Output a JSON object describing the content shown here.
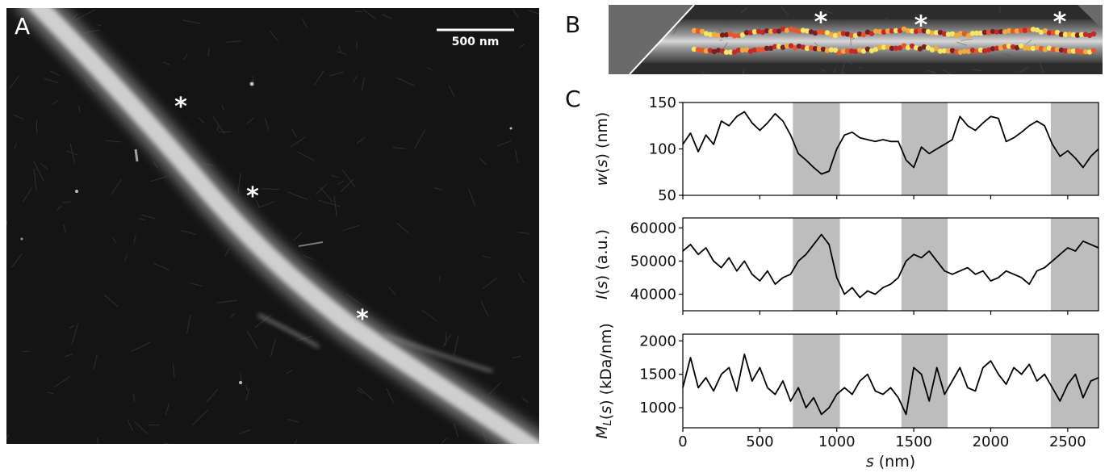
{
  "panels": {
    "a": {
      "letter": "A",
      "scalebar_label": "500 nm",
      "markers": [
        "*",
        "*",
        "*"
      ]
    },
    "b": {
      "letter": "B",
      "markers": [
        "*",
        "*",
        "*"
      ]
    },
    "c": {
      "letter": "C"
    }
  },
  "colors": {
    "shading": "#bdbdbd",
    "line": "#000000",
    "overlay_palette": [
      "#f5e663",
      "#f2a93b",
      "#e8552a",
      "#c62828",
      "#7a1f1f"
    ]
  },
  "chart_data": [
    {
      "type": "line",
      "ylabel": "w(s) (nm)",
      "xlabel": "",
      "xlim": [
        0,
        2700
      ],
      "ylim": [
        50,
        150
      ],
      "xticks": [
        0,
        500,
        1000,
        1500,
        2000,
        2500
      ],
      "yticks": [
        50,
        100,
        150
      ],
      "shaded_regions": [
        [
          715,
          1020
        ],
        [
          1420,
          1720
        ],
        [
          2390,
          2700
        ]
      ],
      "series": [
        {
          "x": [
            0,
            50,
            100,
            150,
            200,
            250,
            300,
            350,
            400,
            450,
            500,
            550,
            600,
            650,
            700,
            750,
            800,
            850,
            900,
            950,
            1000,
            1050,
            1100,
            1150,
            1200,
            1250,
            1300,
            1350,
            1400,
            1450,
            1500,
            1550,
            1600,
            1650,
            1700,
            1750,
            1800,
            1850,
            1900,
            1950,
            2000,
            2050,
            2100,
            2150,
            2200,
            2250,
            2300,
            2350,
            2400,
            2450,
            2500,
            2550,
            2600,
            2650,
            2700
          ],
          "values": [
            105,
            117,
            97,
            115,
            105,
            130,
            125,
            135,
            140,
            128,
            120,
            128,
            138,
            130,
            115,
            95,
            88,
            80,
            73,
            76,
            100,
            115,
            118,
            112,
            110,
            108,
            110,
            108,
            108,
            88,
            80,
            102,
            95,
            100,
            105,
            110,
            135,
            125,
            120,
            128,
            135,
            133,
            108,
            112,
            118,
            125,
            130,
            125,
            105,
            92,
            98,
            90,
            80,
            92,
            100
          ]
        }
      ]
    },
    {
      "type": "line",
      "ylabel": "I(s) (a.u.)",
      "xlabel": "",
      "xlim": [
        0,
        2700
      ],
      "ylim": [
        35000,
        63000
      ],
      "xticks": [
        0,
        500,
        1000,
        1500,
        2000,
        2500
      ],
      "yticks": [
        40000,
        50000,
        60000
      ],
      "shaded_regions": [
        [
          715,
          1020
        ],
        [
          1420,
          1720
        ],
        [
          2390,
          2700
        ]
      ],
      "series": [
        {
          "x": [
            0,
            50,
            100,
            150,
            200,
            250,
            300,
            350,
            400,
            450,
            500,
            550,
            600,
            650,
            700,
            750,
            800,
            850,
            900,
            950,
            1000,
            1050,
            1100,
            1150,
            1200,
            1250,
            1300,
            1350,
            1400,
            1450,
            1500,
            1550,
            1600,
            1650,
            1700,
            1750,
            1800,
            1850,
            1900,
            1950,
            2000,
            2050,
            2100,
            2150,
            2200,
            2250,
            2300,
            2350,
            2400,
            2450,
            2500,
            2550,
            2600,
            2650,
            2700
          ],
          "values": [
            53000,
            55000,
            52000,
            54000,
            50000,
            48000,
            51000,
            47000,
            50000,
            46000,
            44000,
            47000,
            43000,
            45000,
            46000,
            50000,
            52000,
            55000,
            58000,
            55000,
            45000,
            40000,
            42000,
            39000,
            41000,
            40000,
            42000,
            43000,
            45000,
            50000,
            52000,
            51000,
            53000,
            50000,
            47000,
            46000,
            47000,
            48000,
            46000,
            47000,
            44000,
            45000,
            47000,
            46000,
            45000,
            43000,
            47000,
            48000,
            50000,
            52000,
            54000,
            53000,
            56000,
            55000,
            54000
          ]
        }
      ]
    },
    {
      "type": "line",
      "ylabel": "M_L(s) (kDa/nm)",
      "xlabel": "s (nm)",
      "xlim": [
        0,
        2700
      ],
      "ylim": [
        700,
        2100
      ],
      "xticks": [
        0,
        500,
        1000,
        1500,
        2000,
        2500
      ],
      "yticks": [
        1000,
        1500,
        2000
      ],
      "shaded_regions": [
        [
          715,
          1020
        ],
        [
          1420,
          1720
        ],
        [
          2390,
          2700
        ]
      ],
      "series": [
        {
          "x": [
            0,
            50,
            100,
            150,
            200,
            250,
            300,
            350,
            400,
            450,
            500,
            550,
            600,
            650,
            700,
            750,
            800,
            850,
            900,
            950,
            1000,
            1050,
            1100,
            1150,
            1200,
            1250,
            1300,
            1350,
            1400,
            1450,
            1500,
            1550,
            1600,
            1650,
            1700,
            1750,
            1800,
            1850,
            1900,
            1950,
            2000,
            2050,
            2100,
            2150,
            2200,
            2250,
            2300,
            2350,
            2400,
            2450,
            2500,
            2550,
            2600,
            2650,
            2700
          ],
          "values": [
            1300,
            1750,
            1300,
            1450,
            1250,
            1500,
            1600,
            1250,
            1800,
            1400,
            1600,
            1300,
            1200,
            1400,
            1100,
            1300,
            1000,
            1150,
            900,
            1000,
            1200,
            1300,
            1200,
            1400,
            1500,
            1250,
            1200,
            1300,
            1150,
            900,
            1600,
            1500,
            1100,
            1600,
            1200,
            1400,
            1600,
            1300,
            1250,
            1600,
            1700,
            1500,
            1350,
            1600,
            1500,
            1650,
            1400,
            1500,
            1300,
            1100,
            1350,
            1500,
            1150,
            1400,
            1450
          ]
        }
      ]
    }
  ]
}
